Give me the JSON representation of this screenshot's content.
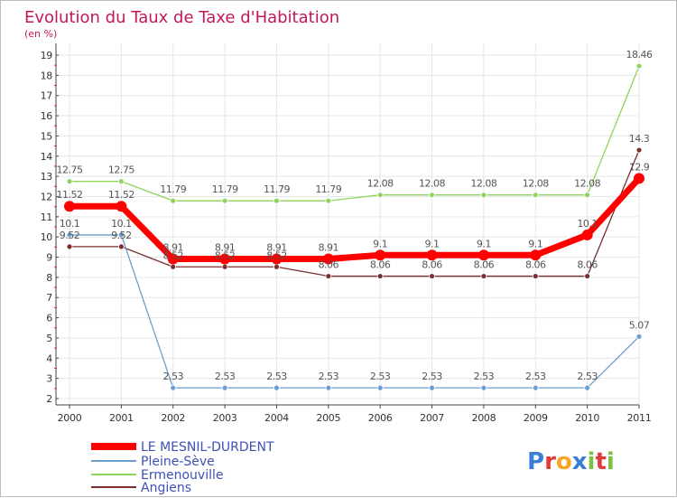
{
  "chart_data": {
    "type": "line",
    "title": "Evolution du Taux de Taxe d'Habitation",
    "subtitle": "(en %)",
    "xlabel": "",
    "ylabel": "",
    "ylim": [
      2,
      19
    ],
    "yticks": [
      "2",
      "3",
      "4",
      "5",
      "6",
      "7",
      "8",
      "9",
      "10",
      "11",
      "12",
      "13",
      "14",
      "15",
      "16",
      "17",
      "18",
      "19"
    ],
    "categories": [
      "2000",
      "2001",
      "2002",
      "2003",
      "2004",
      "2005",
      "2006",
      "2007",
      "2008",
      "2009",
      "2010",
      "2011"
    ],
    "grid": true,
    "legend_position": "bottom-left",
    "series": [
      {
        "name": "LE MESNIL-DURDENT",
        "color": "#ff0000",
        "values": [
          11.52,
          11.52,
          8.91,
          8.91,
          8.91,
          8.91,
          9.1,
          9.1,
          9.1,
          9.1,
          10.1,
          12.9
        ],
        "labels": [
          "11.52",
          "11.52",
          "8.91",
          "8.91",
          "8.91",
          "8.91",
          "9.1",
          "9.1",
          "9.1",
          "9.1",
          "10.1",
          "12.9"
        ]
      },
      {
        "name": "Pleine-Sève",
        "color": "#6a9fd0",
        "values": [
          10.1,
          10.1,
          2.53,
          2.53,
          2.53,
          2.53,
          2.53,
          2.53,
          2.53,
          2.53,
          2.53,
          5.07
        ],
        "labels": [
          "10.1",
          "10.1",
          "2.53",
          "2.53",
          "2.53",
          "2.53",
          "2.53",
          "2.53",
          "2.53",
          "2.53",
          "2.53",
          "5.07"
        ]
      },
      {
        "name": "Ermenouville",
        "color": "#8ed45a",
        "values": [
          12.75,
          12.75,
          11.79,
          11.79,
          11.79,
          11.79,
          12.08,
          12.08,
          12.08,
          12.08,
          12.08,
          18.46
        ],
        "labels": [
          "12.75",
          "12.75",
          "11.79",
          "11.79",
          "11.79",
          "11.79",
          "12.08",
          "12.08",
          "12.08",
          "12.08",
          "12.08",
          "18.46"
        ]
      },
      {
        "name": "Angiens",
        "color": "#7a2e2e",
        "values": [
          9.52,
          9.52,
          8.52,
          8.52,
          8.52,
          8.06,
          8.06,
          8.06,
          8.06,
          8.06,
          8.06,
          14.3
        ],
        "labels": [
          "9.52",
          "9.52",
          "8.52",
          "8.52",
          "8.52",
          "8.06",
          "8.06",
          "8.06",
          "8.06",
          "8.06",
          "8.06",
          "14.3"
        ]
      }
    ]
  },
  "brand": {
    "letters": [
      "P",
      "r",
      "o",
      "x",
      "i",
      "t",
      "i"
    ],
    "colors": [
      "#3a7fd5",
      "#e23b3b",
      "#f5a623",
      "#3a7fd5",
      "#7cc242",
      "#e23b3b",
      "#7cc242"
    ]
  }
}
